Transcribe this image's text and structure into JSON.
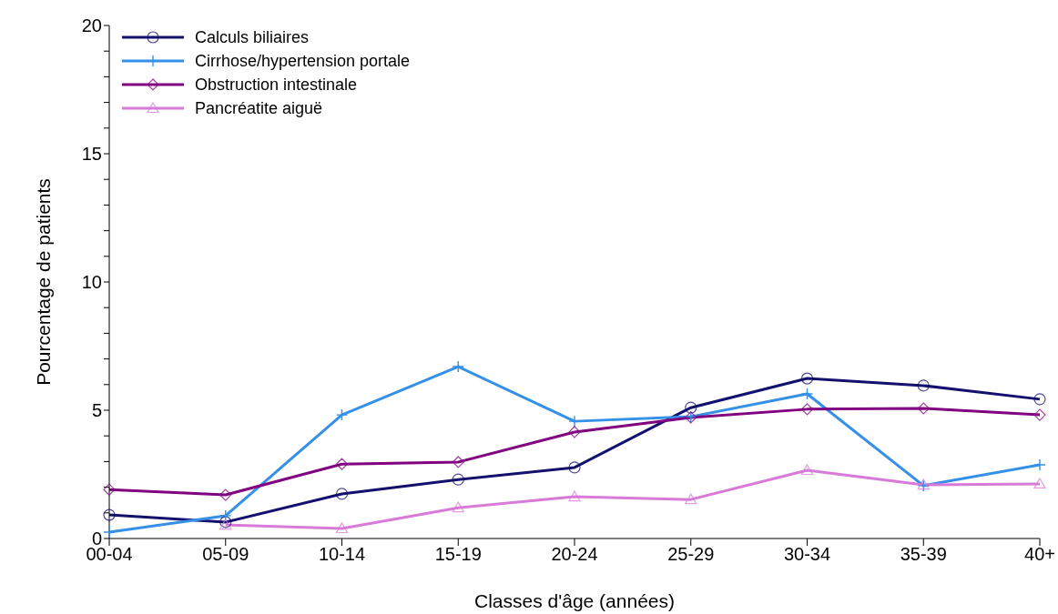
{
  "chart_data": {
    "type": "line",
    "xlabel": "Classes d'âge (années)",
    "ylabel": "Pourcentage de patients",
    "categories": [
      "00-04",
      "05-09",
      "10-14",
      "15-19",
      "20-24",
      "25-29",
      "30-34",
      "35-39",
      "40+"
    ],
    "ylim": [
      0,
      20
    ],
    "yticks": [
      0,
      {
        "value": 1,
        "label": null
      },
      {
        "value": 2,
        "label": null
      },
      {
        "value": 3,
        "label": null
      },
      {
        "value": 4,
        "label": null
      },
      5,
      {
        "value": 6,
        "label": null
      },
      {
        "value": 7,
        "label": null
      },
      {
        "value": 8,
        "label": null
      },
      {
        "value": 9,
        "label": null
      },
      10,
      {
        "value": 11,
        "label": null
      },
      {
        "value": 12,
        "label": null
      },
      {
        "value": 13,
        "label": null
      },
      {
        "value": 14,
        "label": null
      },
      15,
      {
        "value": 16,
        "label": null
      },
      {
        "value": 17,
        "label": null
      },
      {
        "value": 18,
        "label": null
      },
      {
        "value": 19,
        "label": null
      },
      20
    ],
    "grid": false,
    "legend": "top left",
    "series": [
      {
        "name": "Calculs biliaires",
        "color": "#14106e",
        "marker": "circle",
        "values": [
          0.92,
          0.64,
          1.74,
          2.3,
          2.77,
          5.1,
          6.24,
          5.96,
          5.43
        ]
      },
      {
        "name": "Cirrhose/hypertension portale",
        "color": "#3590e8",
        "marker": "cross",
        "values": [
          0.25,
          0.89,
          4.82,
          6.7,
          4.57,
          4.75,
          5.64,
          2.06,
          2.87
        ]
      },
      {
        "name": "Obstruction intestinale",
        "color": "#800080",
        "marker": "diamond",
        "values": [
          1.91,
          1.7,
          2.9,
          2.98,
          4.15,
          4.72,
          5.04,
          5.07,
          4.82
        ]
      },
      {
        "name": "Pancréatite aiguë",
        "color": "#d87ad8",
        "marker": "triangle",
        "values": [
          null,
          0.53,
          0.39,
          1.2,
          1.63,
          1.52,
          2.66,
          2.09,
          2.13
        ]
      }
    ]
  }
}
